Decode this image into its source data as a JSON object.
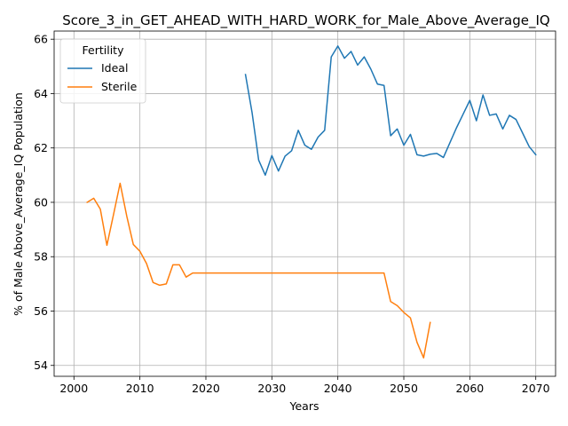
{
  "chart_data": {
    "type": "line",
    "title": "Score_3_in_GET_AHEAD_WITH_HARD_WORK_for_Male_Above_Average_IQ",
    "xlabel": "Years",
    "ylabel": "% of Male Above_Average_IQ Population",
    "xlim": [
      1997,
      2073
    ],
    "ylim": [
      53.6,
      66.3
    ],
    "xticks": [
      2000,
      2010,
      2020,
      2030,
      2040,
      2050,
      2060,
      2070
    ],
    "yticks": [
      54,
      56,
      58,
      60,
      62,
      64,
      66
    ],
    "grid": true,
    "legend": {
      "title": "Fertility",
      "placement": "top-left"
    },
    "series": [
      {
        "name": "Ideal",
        "color": "#1f77b4",
        "points": [
          [
            2026,
            64.7
          ],
          [
            2027,
            63.3
          ],
          [
            2028,
            61.55
          ],
          [
            2029,
            61.0
          ],
          [
            2030,
            61.72
          ],
          [
            2031,
            61.15
          ],
          [
            2032,
            61.7
          ],
          [
            2033,
            61.9
          ],
          [
            2034,
            62.65
          ],
          [
            2035,
            62.1
          ],
          [
            2036,
            61.95
          ],
          [
            2037,
            62.4
          ],
          [
            2038,
            62.65
          ],
          [
            2039,
            65.35
          ],
          [
            2040,
            65.75
          ],
          [
            2041,
            65.3
          ],
          [
            2042,
            65.55
          ],
          [
            2043,
            65.05
          ],
          [
            2044,
            65.35
          ],
          [
            2045,
            64.9
          ],
          [
            2046,
            64.35
          ],
          [
            2047,
            64.3
          ],
          [
            2048,
            62.45
          ],
          [
            2049,
            62.7
          ],
          [
            2050,
            62.1
          ],
          [
            2051,
            62.5
          ],
          [
            2052,
            61.75
          ],
          [
            2053,
            61.7
          ],
          [
            2054,
            61.77
          ],
          [
            2055,
            61.8
          ],
          [
            2056,
            61.65
          ],
          [
            2057,
            62.2
          ],
          [
            2058,
            62.75
          ],
          [
            2059,
            63.25
          ],
          [
            2060,
            63.75
          ],
          [
            2061,
            63.0
          ],
          [
            2062,
            63.95
          ],
          [
            2063,
            63.2
          ],
          [
            2064,
            63.25
          ],
          [
            2065,
            62.7
          ],
          [
            2066,
            63.2
          ],
          [
            2067,
            63.05
          ],
          [
            2068,
            62.55
          ],
          [
            2069,
            62.05
          ],
          [
            2070,
            61.75
          ]
        ]
      },
      {
        "name": "Sterile",
        "color": "#ff7f0e",
        "points": [
          [
            2002,
            60.0
          ],
          [
            2003,
            60.15
          ],
          [
            2004,
            59.75
          ],
          [
            2005,
            58.42
          ],
          [
            2006,
            59.55
          ],
          [
            2007,
            60.7
          ],
          [
            2008,
            59.5
          ],
          [
            2009,
            58.45
          ],
          [
            2010,
            58.2
          ],
          [
            2011,
            57.75
          ],
          [
            2012,
            57.05
          ],
          [
            2013,
            56.95
          ],
          [
            2014,
            57.0
          ],
          [
            2015,
            57.7
          ],
          [
            2016,
            57.7
          ],
          [
            2017,
            57.25
          ],
          [
            2018,
            57.4
          ],
          [
            2019,
            57.4
          ],
          [
            2020,
            57.4
          ],
          [
            2025,
            57.4
          ],
          [
            2030,
            57.4
          ],
          [
            2035,
            57.4
          ],
          [
            2040,
            57.4
          ],
          [
            2045,
            57.4
          ],
          [
            2047,
            57.4
          ],
          [
            2048,
            56.35
          ],
          [
            2049,
            56.2
          ],
          [
            2050,
            55.95
          ],
          [
            2051,
            55.75
          ],
          [
            2052,
            54.85
          ],
          [
            2053,
            54.28
          ],
          [
            2054,
            55.58
          ]
        ]
      }
    ]
  }
}
